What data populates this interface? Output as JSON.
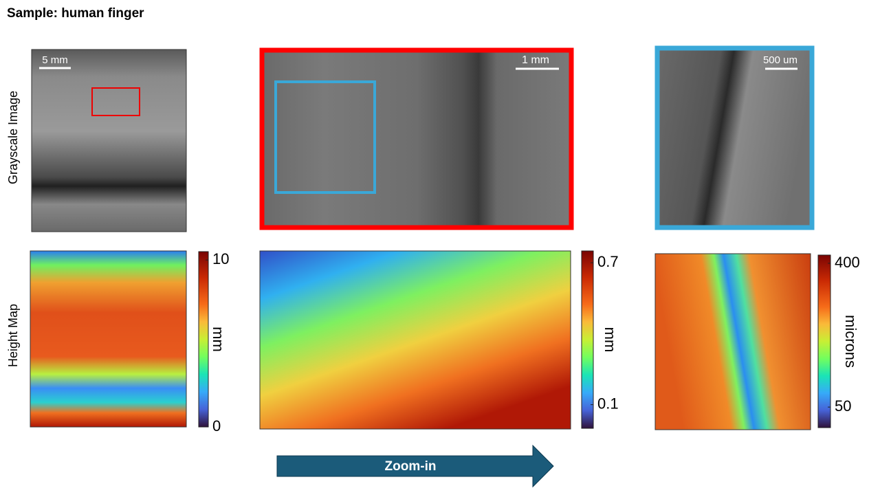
{
  "title": "Sample: human finger",
  "row_labels": [
    "Grayscale Image",
    "Height Map"
  ],
  "scale_bars": [
    "5 mm",
    "1 mm",
    "500 um"
  ],
  "colorbars": [
    {
      "label": "mm",
      "lim": [
        0,
        10.5
      ],
      "ticks": [
        0,
        10
      ]
    },
    {
      "label": "mm",
      "lim": [
        0,
        0.75
      ],
      "ticks": [
        0.1,
        0.7
      ]
    },
    {
      "label": "microns",
      "lim": [
        0,
        420
      ],
      "ticks": [
        50,
        400
      ]
    }
  ],
  "arrow_label": "Zoom-in"
}
